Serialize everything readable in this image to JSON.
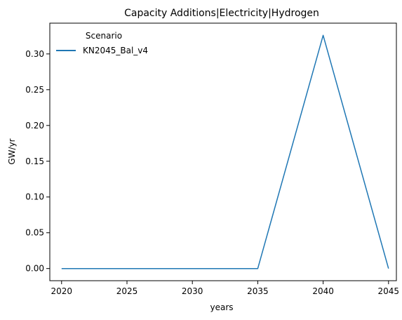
{
  "chart_data": {
    "type": "line",
    "title": "Capacity Additions|Electricity|Hydrogen",
    "xlabel": "years",
    "ylabel": "GW/yr",
    "xlim": [
      2019.1,
      2045.6
    ],
    "ylim": [
      -0.017,
      0.343
    ],
    "x_ticks": [
      "2020",
      "2025",
      "2030",
      "2035",
      "2040",
      "2045"
    ],
    "y_ticks": [
      "0.00",
      "0.05",
      "0.10",
      "0.15",
      "0.20",
      "0.25",
      "0.30"
    ],
    "grid": false,
    "legend": {
      "title": "Scenario",
      "placement": "top-left"
    },
    "series": [
      {
        "name": "KN2045_Bal_v4",
        "color": "#1f77b4",
        "x": [
          2020,
          2025,
          2030,
          2035,
          2040,
          2045
        ],
        "y": [
          0.0,
          0.0,
          0.0,
          0.0,
          0.326,
          0.0
        ]
      }
    ]
  }
}
